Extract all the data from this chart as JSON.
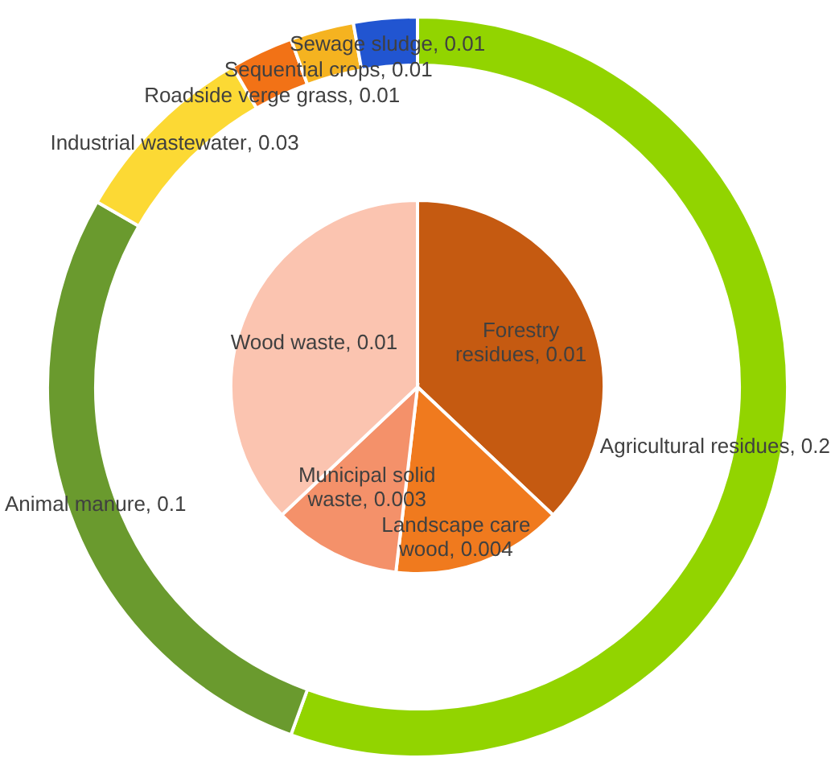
{
  "chart_data": [
    {
      "type": "donut",
      "categories": [
        "Agricultural residues",
        "Animal manure",
        "Industrial wastewater",
        "Roadside verge grass",
        "Sequential crops",
        "Sewage sludge"
      ],
      "values": [
        0.2,
        0.1,
        0.03,
        0.01,
        0.01,
        0.01
      ],
      "value_labels": [
        ", 0.2",
        ", 0.1",
        ", 0.03",
        ", 0.01",
        ", 0.01",
        ", 0.01"
      ],
      "colors": [
        "#92d400",
        "#6a9a2e",
        "#fcd934",
        "#f27216",
        "#f5b320",
        "#2155d1"
      ]
    },
    {
      "type": "pie",
      "categories": [
        "Forestry residues",
        "Landscape care wood",
        "Municipal solid waste",
        "Wood waste"
      ],
      "values": [
        0.01,
        0.004,
        0.003,
        0.01
      ],
      "value_labels": [
        ", 0.01",
        ", 0.004",
        ", 0.003",
        ", 0.01"
      ],
      "colors": [
        "#c55a11",
        "#f07a1e",
        "#f4916a",
        "#fbc4b0"
      ]
    }
  ]
}
